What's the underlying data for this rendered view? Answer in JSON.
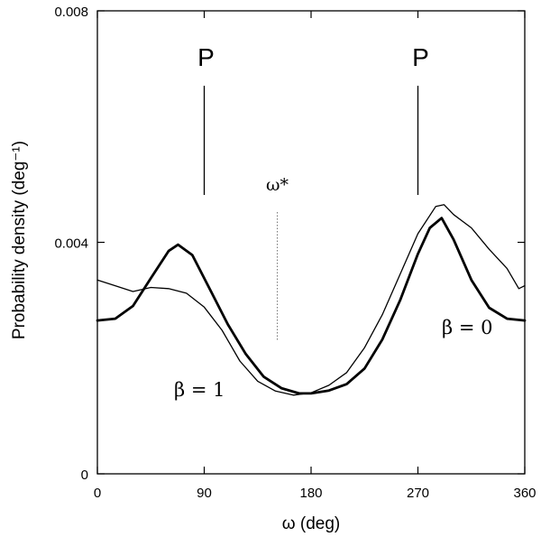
{
  "chart_data": {
    "type": "line",
    "title": "",
    "xlabel": "ω (deg)",
    "ylabel": "Probability density  (deg⁻¹)",
    "xlim": [
      0,
      360
    ],
    "ylim": [
      0,
      0.008
    ],
    "x_ticks": [
      0,
      90,
      180,
      270,
      360
    ],
    "x_tick_labels": [
      "0",
      "90",
      "180",
      "270",
      "360"
    ],
    "y_ticks": [
      0,
      0.004,
      0.008
    ],
    "y_tick_labels": [
      "0",
      "0.004",
      "0.008"
    ],
    "grid": false,
    "series": [
      {
        "name": "β = 0",
        "style": "thick",
        "x": [
          0,
          15,
          30,
          45,
          60,
          68,
          80,
          95,
          110,
          125,
          140,
          155,
          170,
          180,
          195,
          210,
          225,
          240,
          255,
          270,
          280,
          290,
          300,
          315,
          330,
          345,
          360
        ],
        "values": [
          0.00265,
          0.00268,
          0.0029,
          0.00338,
          0.00385,
          0.00396,
          0.00378,
          0.00318,
          0.00258,
          0.00207,
          0.00168,
          0.00148,
          0.00139,
          0.00139,
          0.00144,
          0.00155,
          0.00182,
          0.00232,
          0.003,
          0.0038,
          0.00425,
          0.00442,
          0.00405,
          0.00335,
          0.00287,
          0.00268,
          0.00265
        ]
      },
      {
        "name": "β = 1",
        "style": "thin",
        "x": [
          0,
          15,
          30,
          45,
          60,
          75,
          90,
          105,
          120,
          135,
          150,
          165,
          180,
          195,
          210,
          225,
          240,
          255,
          270,
          285,
          292,
          300,
          315,
          330,
          345,
          355,
          360
        ],
        "values": [
          0.00335,
          0.00325,
          0.00315,
          0.00322,
          0.0032,
          0.00312,
          0.00288,
          0.00248,
          0.00195,
          0.0016,
          0.00143,
          0.00136,
          0.0014,
          0.00153,
          0.00175,
          0.00218,
          0.00275,
          0.00345,
          0.00415,
          0.00462,
          0.00465,
          0.00448,
          0.00425,
          0.00388,
          0.00355,
          0.0032,
          0.00325
        ]
      }
    ],
    "annotations": {
      "p_left": {
        "label": "P",
        "x": 90
      },
      "p_right": {
        "label": "P",
        "x": 270
      },
      "omega_star": {
        "label": "ω*",
        "x": 150
      },
      "beta0_label": "β  = 0",
      "beta1_label": "β  = 1"
    }
  }
}
